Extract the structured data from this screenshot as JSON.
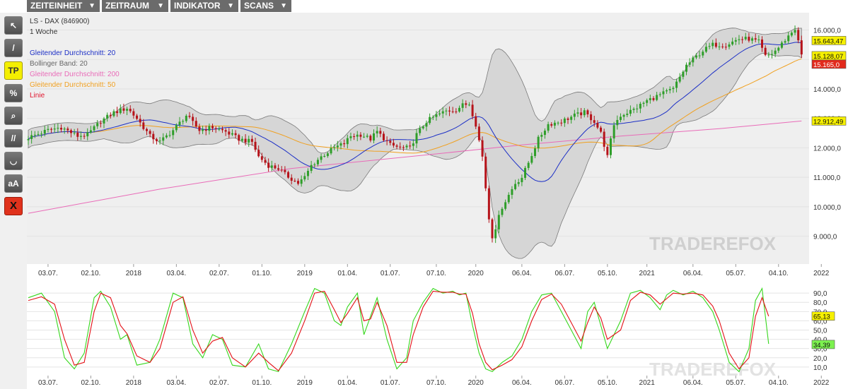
{
  "menu": [
    {
      "label": "ZEITEINHEIT"
    },
    {
      "label": "ZEITRAUM"
    },
    {
      "label": "INDIKATOR"
    },
    {
      "label": "SCANS"
    }
  ],
  "tools": [
    {
      "name": "pointer-tool-icon",
      "glyph": "↖"
    },
    {
      "name": "line-tool-icon",
      "glyph": "/"
    },
    {
      "name": "tp-tool-button",
      "glyph": "TP"
    },
    {
      "name": "percent-tool-icon",
      "glyph": "%"
    },
    {
      "name": "zoom-tool-icon",
      "glyph": "⌕"
    },
    {
      "name": "parallel-lines-tool-icon",
      "glyph": "//"
    },
    {
      "name": "arc-tool-icon",
      "glyph": "◡"
    },
    {
      "name": "text-tool-icon",
      "glyph": "aA"
    },
    {
      "name": "delete-tool-icon",
      "glyph": "X"
    }
  ],
  "chart_data": [
    {
      "type": "candlestick",
      "title": "LS - DAX (846900)",
      "subtitle": "1 Woche",
      "watermark": "TRADEREFOX",
      "legend": [
        {
          "label": "Gleitender Durchschnitt: 20",
          "color": "#1c2fc6"
        },
        {
          "label": "Bollinger Band: 20",
          "color": "#666666"
        },
        {
          "label": "Gleitender Durchschnitt: 200",
          "color": "#e96bb8"
        },
        {
          "label": "Gleitender Durchschnitt: 50",
          "color": "#f0a020"
        },
        {
          "label": "Linie",
          "color": "#e0142c"
        }
      ],
      "x_ticks": [
        {
          "label": "03.07.",
          "week": 6
        },
        {
          "label": "02.10.",
          "week": 19
        },
        {
          "label": "2018",
          "week": 32
        },
        {
          "label": "03.04.",
          "week": 45
        },
        {
          "label": "02.07.",
          "week": 58
        },
        {
          "label": "01.10.",
          "week": 71
        },
        {
          "label": "2019",
          "week": 84
        },
        {
          "label": "01.04.",
          "week": 97
        },
        {
          "label": "01.07.",
          "week": 110
        },
        {
          "label": "07.10.",
          "week": 124
        },
        {
          "label": "2020",
          "week": 136
        },
        {
          "label": "06.04.",
          "week": 150
        },
        {
          "label": "06.07.",
          "week": 163
        },
        {
          "label": "05.10.",
          "week": 176
        },
        {
          "label": "2021",
          "week": 188
        },
        {
          "label": "06.04.",
          "week": 202
        },
        {
          "label": "05.07.",
          "week": 215
        },
        {
          "label": "04.10.",
          "week": 228
        },
        {
          "label": "2022",
          "week": 241
        }
      ],
      "y_ticks": [
        9000,
        10000,
        11000,
        12000,
        13000,
        14000,
        15000,
        16000
      ],
      "y_tick_labels": [
        "9.000,0",
        "10.000,0",
        "11.000,0",
        "12.000,0",
        "13.000,0",
        "14.000,0",
        "15.000,0",
        "16.000,0"
      ],
      "ylim": [
        8200,
        16300
      ],
      "close_anchors": [
        [
          0,
          12350
        ],
        [
          6,
          12600
        ],
        [
          10,
          12700
        ],
        [
          15,
          12400
        ],
        [
          18,
          12450
        ],
        [
          22,
          12900
        ],
        [
          26,
          13200
        ],
        [
          30,
          13350
        ],
        [
          33,
          13000
        ],
        [
          37,
          12400
        ],
        [
          40,
          12200
        ],
        [
          44,
          12600
        ],
        [
          48,
          13100
        ],
        [
          52,
          12600
        ],
        [
          56,
          12700
        ],
        [
          60,
          12550
        ],
        [
          64,
          12300
        ],
        [
          68,
          12200
        ],
        [
          70,
          11700
        ],
        [
          73,
          11400
        ],
        [
          76,
          11300
        ],
        [
          78,
          11100
        ],
        [
          80,
          10950
        ],
        [
          82,
          10800
        ],
        [
          84,
          11000
        ],
        [
          86,
          11400
        ],
        [
          89,
          11700
        ],
        [
          93,
          12000
        ],
        [
          96,
          12150
        ],
        [
          98,
          12400
        ],
        [
          101,
          12450
        ],
        [
          104,
          12300
        ],
        [
          106,
          12550
        ],
        [
          110,
          12100
        ],
        [
          113,
          12000
        ],
        [
          116,
          12000
        ],
        [
          118,
          12450
        ],
        [
          121,
          12900
        ],
        [
          124,
          13100
        ],
        [
          127,
          13250
        ],
        [
          130,
          13300
        ],
        [
          132,
          13450
        ],
        [
          134,
          13500
        ],
        [
          136,
          12800
        ],
        [
          138,
          11700
        ],
        [
          140,
          9600
        ],
        [
          141,
          9000
        ],
        [
          142,
          9300
        ],
        [
          144,
          10000
        ],
        [
          146,
          10400
        ],
        [
          148,
          10800
        ],
        [
          150,
          11000
        ],
        [
          152,
          11500
        ],
        [
          155,
          12300
        ],
        [
          158,
          12800
        ],
        [
          162,
          12900
        ],
        [
          166,
          13100
        ],
        [
          169,
          13200
        ],
        [
          172,
          12900
        ],
        [
          174,
          12500
        ],
        [
          176,
          11700
        ],
        [
          178,
          12800
        ],
        [
          180,
          13100
        ],
        [
          184,
          13300
        ],
        [
          188,
          13600
        ],
        [
          192,
          13800
        ],
        [
          196,
          14000
        ],
        [
          198,
          14400
        ],
        [
          200,
          14800
        ],
        [
          202,
          15000
        ],
        [
          205,
          15300
        ],
        [
          208,
          15500
        ],
        [
          212,
          15500
        ],
        [
          216,
          15700
        ],
        [
          219,
          15700
        ],
        [
          222,
          15600
        ],
        [
          224,
          15100
        ],
        [
          226,
          15200
        ],
        [
          228,
          15400
        ],
        [
          231,
          15800
        ],
        [
          233,
          16050
        ],
        [
          234,
          15600
        ],
        [
          235,
          15165
        ]
      ],
      "last_values": [
        {
          "label": "15.643,47",
          "value": 15643.47,
          "bg": "#f6f000",
          "fg": "#111111",
          "series": "Gleitender Durchschnitt: 20"
        },
        {
          "label": "15.128,07",
          "value": 15128.07,
          "bg": "#f6f000",
          "fg": "#111111",
          "series": "Gleitender Durchschnitt: 50"
        },
        {
          "label": "15.165,0",
          "value": 15165.0,
          "bg": "#e22a1c",
          "fg": "#ffffff",
          "series": "Linie"
        },
        {
          "label": "12.912,49",
          "value": 12912.49,
          "bg": "#f6f000",
          "fg": "#111111",
          "series": "Gleitender Durchschnitt: 200"
        }
      ],
      "ma200_line": [
        [
          0,
          9780
        ],
        [
          40,
          10600
        ],
        [
          80,
          11300
        ],
        [
          120,
          11750
        ],
        [
          150,
          12100
        ],
        [
          180,
          12400
        ],
        [
          210,
          12650
        ],
        [
          235,
          12912
        ]
      ]
    },
    {
      "type": "line",
      "title": "",
      "y_ticks": [
        10,
        20,
        30,
        40,
        50,
        60,
        70,
        80,
        90
      ],
      "y_tick_labels": [
        "10,0",
        "20,0",
        "30,0",
        "40,0",
        "50,0",
        "60,0",
        "70,0",
        "80,0",
        "90,0"
      ],
      "ylim": [
        3,
        97
      ],
      "series": [
        {
          "name": "%K",
          "color": "#36d71c",
          "last_label": "34,39",
          "last_value": 34.39,
          "points": [
            [
              0,
              85
            ],
            [
              4,
              90
            ],
            [
              8,
              70
            ],
            [
              11,
              20
            ],
            [
              14,
              8
            ],
            [
              17,
              25
            ],
            [
              20,
              85
            ],
            [
              22,
              92
            ],
            [
              25,
              75
            ],
            [
              28,
              40
            ],
            [
              30,
              45
            ],
            [
              33,
              12
            ],
            [
              37,
              15
            ],
            [
              40,
              40
            ],
            [
              44,
              90
            ],
            [
              47,
              85
            ],
            [
              50,
              35
            ],
            [
              53,
              20
            ],
            [
              56,
              45
            ],
            [
              59,
              40
            ],
            [
              62,
              12
            ],
            [
              66,
              10
            ],
            [
              70,
              35
            ],
            [
              73,
              8
            ],
            [
              76,
              5
            ],
            [
              80,
              35
            ],
            [
              84,
              70
            ],
            [
              87,
              95
            ],
            [
              90,
              90
            ],
            [
              93,
              60
            ],
            [
              95,
              55
            ],
            [
              97,
              75
            ],
            [
              100,
              90
            ],
            [
              102,
              45
            ],
            [
              104,
              65
            ],
            [
              106,
              85
            ],
            [
              109,
              40
            ],
            [
              112,
              8
            ],
            [
              115,
              20
            ],
            [
              117,
              60
            ],
            [
              120,
              80
            ],
            [
              123,
              95
            ],
            [
              126,
              90
            ],
            [
              129,
              92
            ],
            [
              131,
              88
            ],
            [
              133,
              90
            ],
            [
              135,
              55
            ],
            [
              137,
              25
            ],
            [
              139,
              8
            ],
            [
              141,
              5
            ],
            [
              144,
              15
            ],
            [
              147,
              22
            ],
            [
              150,
              40
            ],
            [
              153,
              70
            ],
            [
              156,
              88
            ],
            [
              159,
              90
            ],
            [
              162,
              70
            ],
            [
              165,
              50
            ],
            [
              168,
              30
            ],
            [
              170,
              70
            ],
            [
              172,
              80
            ],
            [
              174,
              55
            ],
            [
              176,
              30
            ],
            [
              180,
              60
            ],
            [
              183,
              90
            ],
            [
              186,
              93
            ],
            [
              189,
              85
            ],
            [
              192,
              72
            ],
            [
              194,
              88
            ],
            [
              196,
              93
            ],
            [
              199,
              88
            ],
            [
              202,
              92
            ],
            [
              205,
              85
            ],
            [
              208,
              70
            ],
            [
              210,
              50
            ],
            [
              213,
              15
            ],
            [
              216,
              5
            ],
            [
              219,
              30
            ],
            [
              221,
              82
            ],
            [
              223,
              95
            ],
            [
              225,
              35
            ]
          ]
        },
        {
          "name": "%D",
          "color": "#e30f15",
          "last_label": "65,13",
          "last_value": 65.13,
          "points": [
            [
              0,
              82
            ],
            [
              4,
              86
            ],
            [
              8,
              78
            ],
            [
              11,
              40
            ],
            [
              14,
              12
            ],
            [
              17,
              15
            ],
            [
              20,
              70
            ],
            [
              22,
              90
            ],
            [
              25,
              85
            ],
            [
              28,
              55
            ],
            [
              30,
              46
            ],
            [
              33,
              22
            ],
            [
              37,
              15
            ],
            [
              40,
              30
            ],
            [
              44,
              80
            ],
            [
              47,
              86
            ],
            [
              50,
              50
            ],
            [
              53,
              25
            ],
            [
              56,
              38
            ],
            [
              59,
              42
            ],
            [
              62,
              20
            ],
            [
              66,
              10
            ],
            [
              70,
              25
            ],
            [
              73,
              15
            ],
            [
              76,
              6
            ],
            [
              80,
              25
            ],
            [
              84,
              60
            ],
            [
              87,
              90
            ],
            [
              90,
              92
            ],
            [
              93,
              72
            ],
            [
              95,
              58
            ],
            [
              97,
              68
            ],
            [
              100,
              85
            ],
            [
              102,
              60
            ],
            [
              104,
              62
            ],
            [
              106,
              80
            ],
            [
              109,
              55
            ],
            [
              112,
              15
            ],
            [
              115,
              15
            ],
            [
              117,
              45
            ],
            [
              120,
              75
            ],
            [
              123,
              92
            ],
            [
              126,
              91
            ],
            [
              129,
              91
            ],
            [
              131,
              89
            ],
            [
              133,
              89
            ],
            [
              135,
              68
            ],
            [
              137,
              35
            ],
            [
              139,
              15
            ],
            [
              141,
              7
            ],
            [
              144,
              12
            ],
            [
              147,
              18
            ],
            [
              150,
              32
            ],
            [
              153,
              60
            ],
            [
              156,
              83
            ],
            [
              159,
              89
            ],
            [
              162,
              78
            ],
            [
              165,
              58
            ],
            [
              168,
              38
            ],
            [
              170,
              58
            ],
            [
              172,
              75
            ],
            [
              174,
              63
            ],
            [
              176,
              40
            ],
            [
              180,
              50
            ],
            [
              183,
              82
            ],
            [
              186,
              91
            ],
            [
              189,
              88
            ],
            [
              192,
              78
            ],
            [
              194,
              84
            ],
            [
              196,
              90
            ],
            [
              199,
              89
            ],
            [
              202,
              90
            ],
            [
              205,
              88
            ],
            [
              208,
              76
            ],
            [
              210,
              60
            ],
            [
              213,
              25
            ],
            [
              216,
              8
            ],
            [
              219,
              20
            ],
            [
              221,
              65
            ],
            [
              223,
              85
            ],
            [
              225,
              65
            ]
          ]
        }
      ]
    }
  ]
}
